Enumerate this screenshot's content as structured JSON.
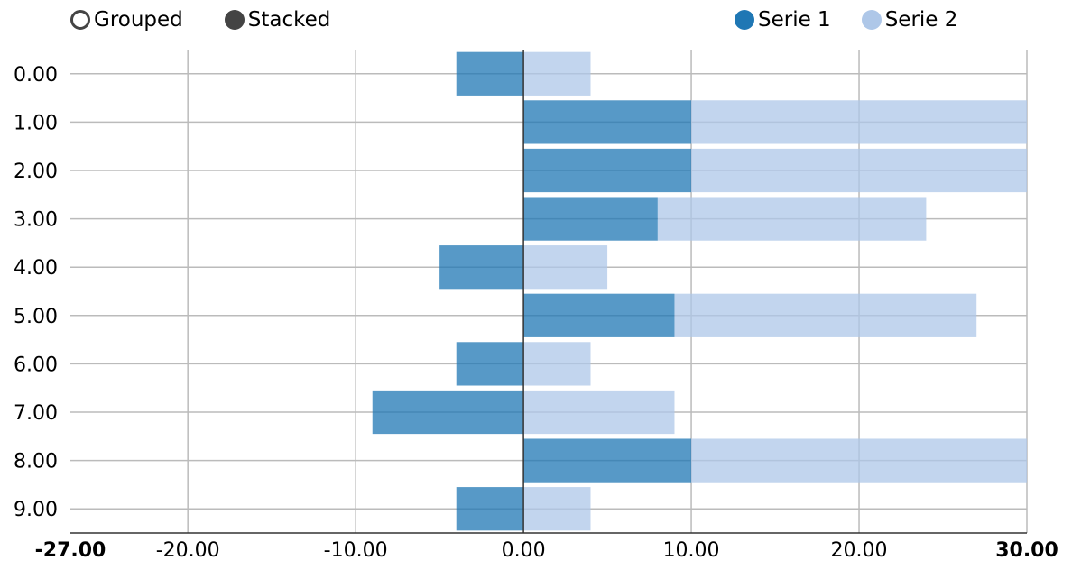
{
  "controls": {
    "grouped_label": "Grouped",
    "stacked_label": "Stacked",
    "selected": "stacked"
  },
  "legend": [
    {
      "name": "Serie 1",
      "color": "#1f77b4"
    },
    {
      "name": "Serie 2",
      "color": "#aec7e8"
    }
  ],
  "chart_data": {
    "type": "bar",
    "orientation": "horizontal",
    "stacked": true,
    "categories": [
      "0.00",
      "1.00",
      "2.00",
      "3.00",
      "4.00",
      "5.00",
      "6.00",
      "7.00",
      "8.00",
      "9.00"
    ],
    "series": [
      {
        "name": "Serie 1",
        "color": "#1f77b4",
        "values": [
          -4,
          10,
          10,
          8,
          -5,
          9,
          -4,
          -9,
          10,
          -4
        ]
      },
      {
        "name": "Serie 2",
        "color": "#aec7e8",
        "values": [
          4,
          20,
          20,
          16,
          5,
          18,
          4,
          9,
          20,
          4
        ]
      }
    ],
    "xlim": [
      -27,
      30
    ],
    "x_ticks": [
      -27,
      -20,
      -10,
      0,
      10,
      20,
      30
    ],
    "x_tick_labels": [
      "-27.00",
      "-20.00",
      "-10.00",
      "0.00",
      "10.00",
      "20.00",
      "30.00"
    ],
    "bold_ticks": [
      "-27.00",
      "30.00"
    ],
    "grid": true,
    "legend_position": "top-right"
  }
}
